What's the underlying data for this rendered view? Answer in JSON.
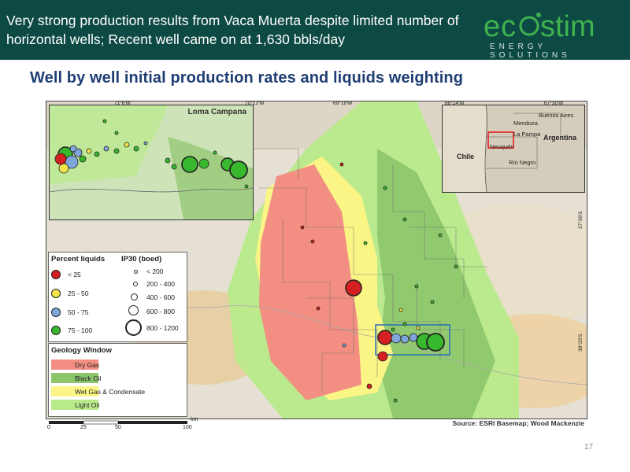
{
  "header": {
    "title": "Very strong production results from Vaca Muerta despite limited number of horizontal wells; Recent well came on at 1,630 bbls/day",
    "background": "#0e4a44"
  },
  "logo": {
    "word": "ecostim",
    "tagline": "ENERGY SOLUTIONS",
    "accent_color": "#3fb24f"
  },
  "slide": {
    "subtitle": "Well by well initial production rates and liquids weighting",
    "page_number": "17"
  },
  "map": {
    "top_coords": [
      "71°6'W",
      "70°12'W",
      "69°18'W",
      "68°24'W",
      "67°30'W"
    ],
    "side_coords": [
      "37°30'S",
      "38°20'S"
    ],
    "inset": {
      "label": "Loma Campana"
    },
    "locator": {
      "labels": [
        "Mendoza",
        "Buenos Aires",
        "La Pampa",
        "Argentina",
        "Neuquén",
        "Chile",
        "Río Negro"
      ]
    },
    "legend_percent": {
      "title": "Percent liquids",
      "items": [
        {
          "label": "< 25",
          "color": "#d42020"
        },
        {
          "label": "25 - 50",
          "color": "#f3e44a"
        },
        {
          "label": "50 - 75",
          "color": "#7fa7dc"
        },
        {
          "label": "75 - 100",
          "color": "#38b82c"
        }
      ]
    },
    "legend_ip30": {
      "title": "IP30 (boed)",
      "items": [
        "< 200",
        "200 - 400",
        "400 - 600",
        "600 - 800",
        "800 - 1200"
      ]
    },
    "legend_geology": {
      "title": "Geology Window",
      "items": [
        {
          "label": "Dry Gas",
          "color": "#f28f82"
        },
        {
          "label": "Black Oil",
          "color": "#8dc56b"
        },
        {
          "label": "Wet Gas & Condensate",
          "color": "#fbf586"
        },
        {
          "label": "Light Oil",
          "color": "#b8ea8a"
        }
      ]
    },
    "scale": {
      "unit": "km",
      "ticks": [
        "0",
        "25",
        "50",
        "100"
      ]
    },
    "source": "Source: ESRI Basemap; Wood Mackenzie"
  }
}
